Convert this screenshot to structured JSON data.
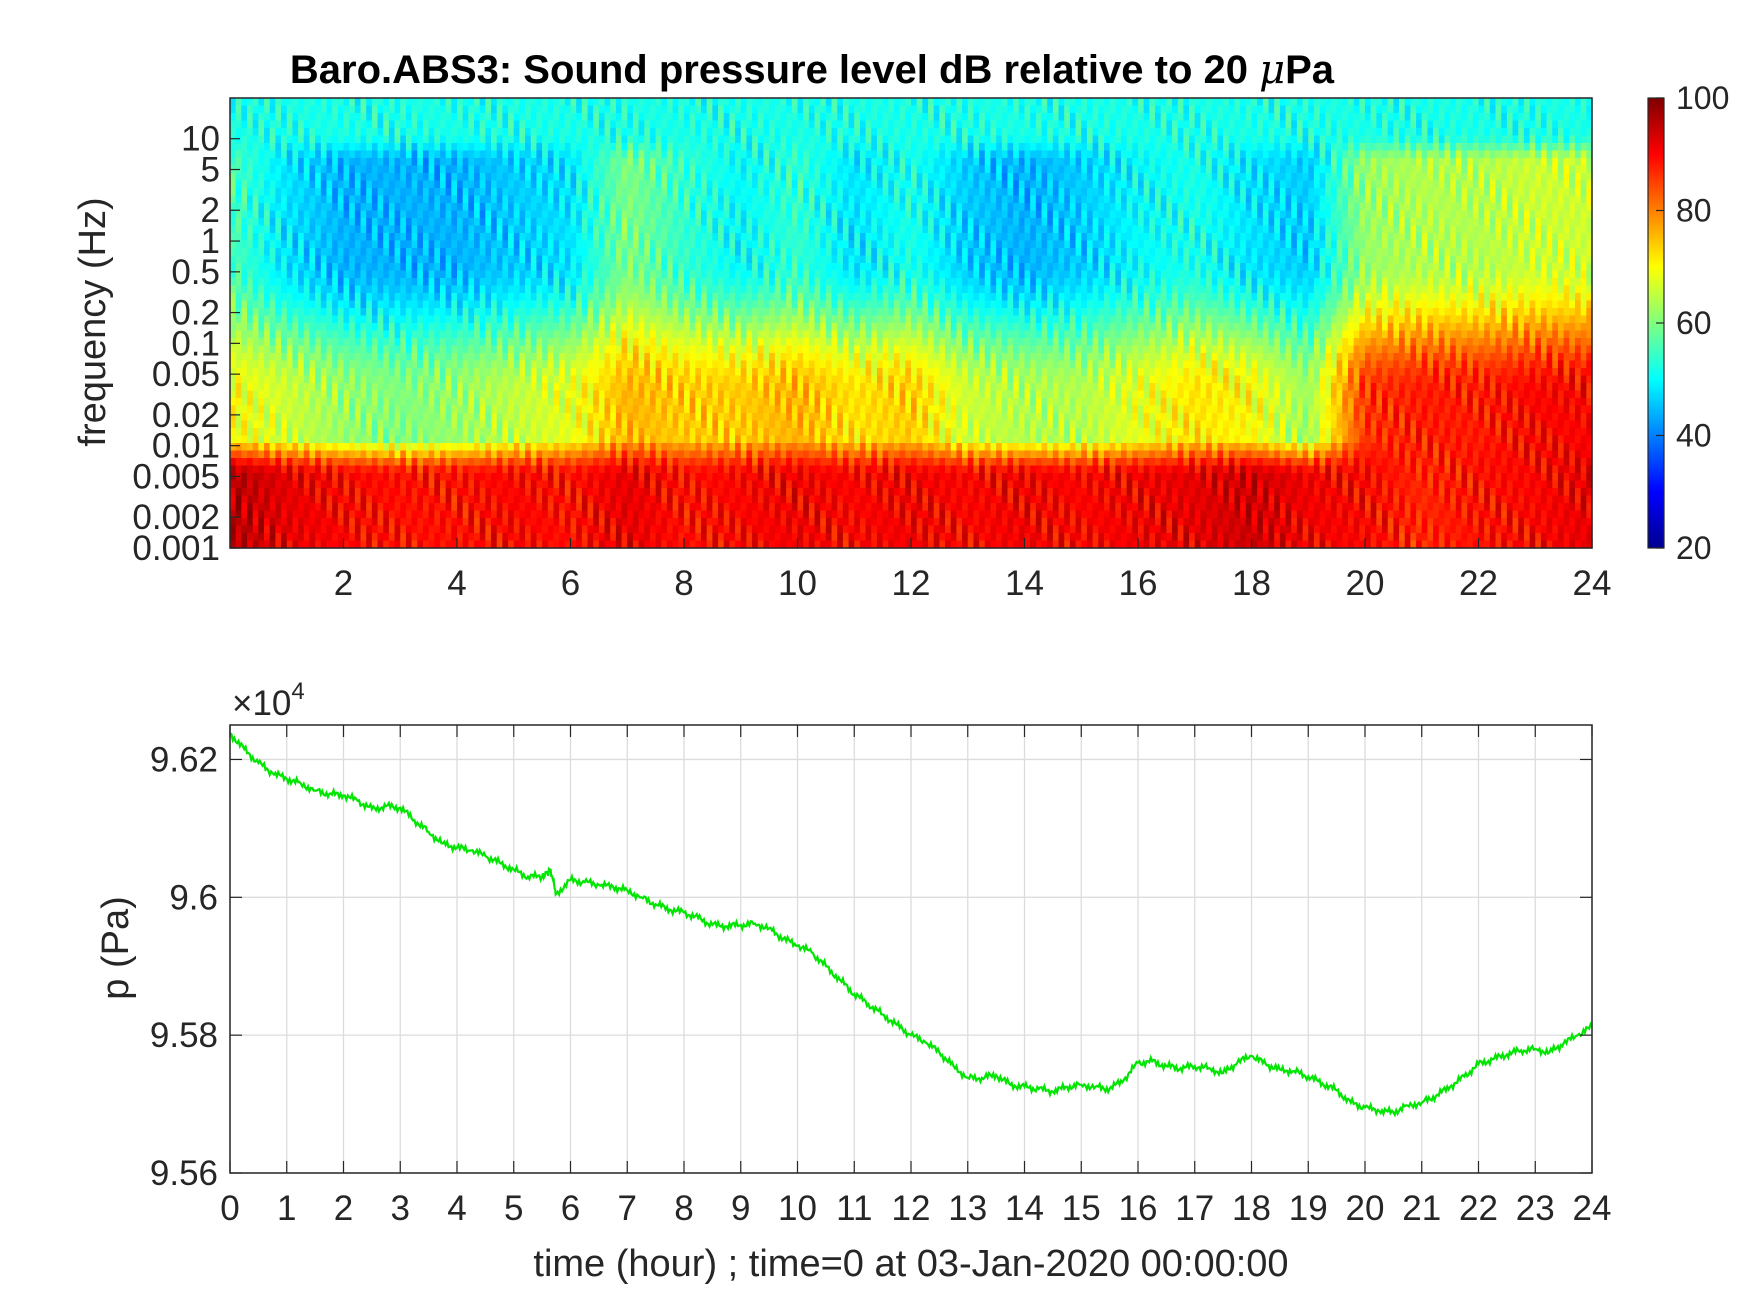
{
  "chart_data": [
    {
      "type": "heatmap",
      "title": "Baro.ABS3: Sound pressure level dB relative to 20 μPa",
      "title_prefix": "Baro.ABS3: Sound pressure level dB relative to 20 ",
      "title_mu": "μ",
      "title_suffix": "Pa",
      "xlabel": "",
      "ylabel": "frequency (Hz)",
      "xlim": [
        0,
        24
      ],
      "x_ticks": [
        2,
        4,
        6,
        8,
        10,
        12,
        14,
        16,
        18,
        20,
        22,
        24
      ],
      "x_tick_labels": [
        "2",
        "4",
        "6",
        "8",
        "10",
        "12",
        "14",
        "16",
        "18",
        "20",
        "22",
        "24"
      ],
      "y_scale": "log",
      "ylim": [
        0.001,
        25
      ],
      "y_ticks": [
        0.001,
        0.002,
        0.005,
        0.01,
        0.02,
        0.05,
        0.1,
        0.2,
        0.5,
        1,
        2,
        5,
        10
      ],
      "y_tick_labels": [
        "0.001",
        "0.002",
        "0.005",
        "0.01",
        "0.02",
        "0.05",
        "0.1",
        "0.2",
        "0.5",
        "1",
        "2",
        "5",
        "10"
      ],
      "colorbar": {
        "colormap": "jet",
        "range": [
          20,
          100
        ],
        "ticks": [
          20,
          40,
          60,
          80,
          100
        ],
        "tick_labels": [
          "20",
          "40",
          "60",
          "80",
          "100"
        ]
      },
      "level_profile_db": {
        "x_hours": [
          0,
          1,
          2,
          3,
          4,
          5,
          6,
          7,
          8,
          9,
          10,
          11,
          12,
          13,
          14,
          15,
          16,
          17,
          18,
          19,
          20,
          21,
          22,
          23,
          24
        ],
        "lt_0.01Hz": [
          96,
          92,
          90,
          89,
          89,
          90,
          89,
          92,
          89,
          90,
          91,
          90,
          91,
          90,
          91,
          90,
          91,
          92,
          94,
          91,
          90,
          87,
          89,
          90,
          92
        ],
        "0.01_to_0.5Hz": [
          70,
          66,
          62,
          60,
          62,
          65,
          68,
          76,
          74,
          74,
          76,
          72,
          74,
          66,
          64,
          64,
          68,
          72,
          70,
          62,
          86,
          88,
          88,
          90,
          90
        ],
        "1_to_5Hz": [
          56,
          48,
          44,
          44,
          44,
          46,
          48,
          60,
          54,
          50,
          54,
          48,
          52,
          46,
          44,
          46,
          50,
          52,
          48,
          46,
          62,
          64,
          64,
          66,
          66
        ],
        "gt_10Hz": [
          52,
          52,
          52,
          52,
          52,
          52,
          52,
          52,
          52,
          52,
          52,
          52,
          52,
          52,
          52,
          52,
          52,
          52,
          52,
          52,
          52,
          52,
          52,
          52,
          52
        ]
      }
    },
    {
      "type": "line",
      "title": "",
      "xlabel": "time (hour) ; time=0 at 03-Jan-2020 00:00:00",
      "ylabel": "p (Pa)",
      "y_exponent_label": "×10",
      "y_exponent": "4",
      "xlim": [
        0,
        24
      ],
      "ylim": [
        9.56,
        9.625
      ],
      "x_ticks": [
        0,
        1,
        2,
        3,
        4,
        5,
        6,
        7,
        8,
        9,
        10,
        11,
        12,
        13,
        14,
        15,
        16,
        17,
        18,
        19,
        20,
        21,
        22,
        23,
        24
      ],
      "x_tick_labels": [
        "0",
        "1",
        "2",
        "3",
        "4",
        "5",
        "6",
        "7",
        "8",
        "9",
        "10",
        "11",
        "12",
        "13",
        "14",
        "15",
        "16",
        "17",
        "18",
        "19",
        "20",
        "21",
        "22",
        "23",
        "24"
      ],
      "y_ticks": [
        9.56,
        9.58,
        9.6,
        9.62
      ],
      "y_tick_labels": [
        "9.56",
        "9.58",
        "9.6",
        "9.62"
      ],
      "grid": true,
      "color": "#00e600",
      "series": [
        {
          "x": [
            0,
            0.25,
            0.5,
            0.75,
            1,
            1.25,
            1.5,
            1.75,
            2,
            2.25,
            2.5,
            2.75,
            3,
            3.25,
            3.5,
            3.75,
            4,
            4.25,
            4.5,
            4.75,
            5,
            5.25,
            5.5,
            5.65,
            5.75,
            6,
            6.25,
            6.5,
            6.75,
            7,
            7.25,
            7.5,
            7.75,
            8,
            8.25,
            8.5,
            8.75,
            9,
            9.25,
            9.5,
            9.75,
            10,
            10.25,
            10.5,
            10.75,
            11,
            11.25,
            11.5,
            11.75,
            12,
            12.25,
            12.5,
            12.75,
            13,
            13.25,
            13.5,
            13.75,
            14,
            14.25,
            14.5,
            14.75,
            15,
            15.25,
            15.5,
            15.75,
            16,
            16.25,
            16.5,
            16.75,
            17,
            17.25,
            17.5,
            17.75,
            18,
            18.25,
            18.5,
            18.75,
            19,
            19.25,
            19.5,
            19.75,
            20,
            20.25,
            20.5,
            20.75,
            21,
            21.25,
            21.5,
            21.75,
            22,
            22.25,
            22.5,
            22.75,
            23,
            23.25,
            23.5,
            23.75,
            24
          ],
          "y": [
            9.6238,
            9.6215,
            9.6195,
            9.618,
            9.6172,
            9.6165,
            9.6155,
            9.615,
            9.6148,
            9.614,
            9.6128,
            9.6132,
            9.613,
            9.6112,
            9.6095,
            9.6078,
            9.6072,
            9.6068,
            9.606,
            9.605,
            9.604,
            9.603,
            9.603,
            9.604,
            9.6005,
            9.6025,
            9.6022,
            9.6018,
            9.6015,
            9.601,
            9.6,
            9.599,
            9.5982,
            9.5978,
            9.597,
            9.596,
            9.5958,
            9.596,
            9.5962,
            9.5955,
            9.594,
            9.593,
            9.592,
            9.59,
            9.588,
            9.586,
            9.5845,
            9.583,
            9.5815,
            9.58,
            9.579,
            9.5775,
            9.5755,
            9.5738,
            9.5738,
            9.5742,
            9.5728,
            9.5725,
            9.5722,
            9.5718,
            9.5725,
            9.5728,
            9.5725,
            9.5722,
            9.5735,
            9.576,
            9.5762,
            9.5755,
            9.5752,
            9.5755,
            9.5752,
            9.5745,
            9.576,
            9.577,
            9.5758,
            9.575,
            9.5748,
            9.574,
            9.573,
            9.572,
            9.5702,
            9.5695,
            9.569,
            9.5688,
            9.5698,
            9.5702,
            9.5712,
            9.5725,
            9.574,
            9.5758,
            9.5765,
            9.5772,
            9.5778,
            9.578,
            9.5775,
            9.5788,
            9.58,
            9.5812
          ]
        }
      ]
    }
  ]
}
